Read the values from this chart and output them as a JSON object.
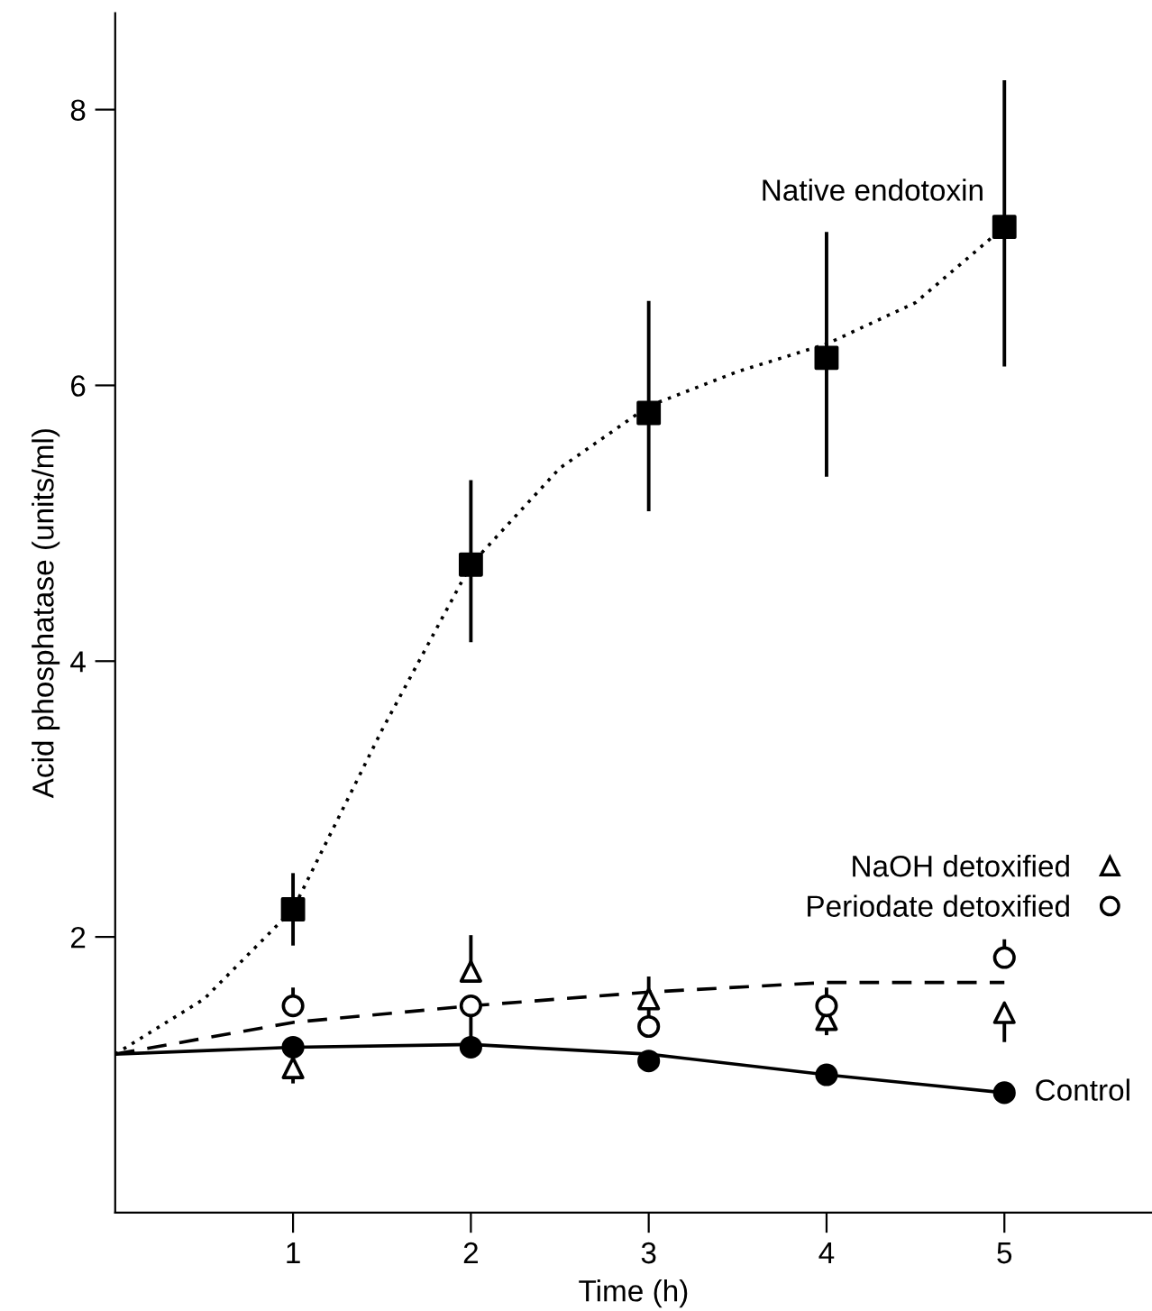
{
  "chart_data": {
    "type": "scatter",
    "xlabel": "Time (h)",
    "ylabel": "Acid phosphatase (units/ml)",
    "xlim": [
      0,
      5.83
    ],
    "ylim": [
      0,
      8.7
    ],
    "xticks": [
      1,
      2,
      3,
      4,
      5
    ],
    "yticks": [
      2,
      4,
      6,
      8
    ],
    "grid": false,
    "legend": "right",
    "series": [
      {
        "type": "line",
        "x": [
          0,
          0.5,
          1,
          1.5,
          2,
          2.5,
          3,
          3.5,
          4,
          4.5,
          5
        ],
        "values": [
          1.15,
          1.55,
          2.2,
          3.5,
          4.7,
          5.4,
          5.85,
          6.1,
          6.3,
          6.6,
          7.15
        ],
        "color": "#000000",
        "line_style": "dotted",
        "marker": "none"
      },
      {
        "type": "line",
        "x": [
          0,
          1,
          2,
          3,
          4,
          5
        ],
        "values": [
          1.15,
          1.2,
          1.22,
          1.15,
          1.0,
          0.87
        ],
        "color": "#000000",
        "line_style": "solid",
        "marker": "none"
      },
      {
        "type": "line",
        "x": [
          0,
          1,
          2,
          3,
          4,
          5
        ],
        "values": [
          1.15,
          1.38,
          1.5,
          1.6,
          1.67,
          1.67
        ],
        "color": "#000000",
        "line_style": "dashed",
        "marker": "none"
      },
      {
        "name": "Native endotoxin",
        "x": [
          1,
          2,
          3,
          4,
          5
        ],
        "values": [
          2.2,
          4.7,
          5.8,
          6.2,
          7.15
        ],
        "color": "#000000",
        "marker": "square",
        "errors": [
          [
            1.95,
            2.45
          ],
          [
            4.15,
            5.3
          ],
          [
            5.1,
            6.6
          ],
          [
            5.35,
            7.1
          ],
          [
            6.15,
            8.2
          ]
        ]
      },
      {
        "name": "NaOH detoxified",
        "x": [
          1,
          2,
          3,
          4,
          5
        ],
        "values": [
          1.05,
          1.75,
          1.55,
          1.4,
          1.45
        ],
        "color": "#ffffff",
        "marker": "triangle",
        "errors": [
          [
            0.95,
            1.05
          ],
          [
            1.75,
            2.0
          ],
          [
            1.55,
            1.7
          ],
          [
            1.3,
            1.4
          ],
          [
            1.25,
            1.45
          ]
        ]
      },
      {
        "name": "Periodate detoxified",
        "x": [
          1,
          2,
          3,
          4,
          5
        ],
        "values": [
          1.5,
          1.5,
          1.35,
          1.5,
          1.85
        ],
        "color": "#ffffff",
        "marker": "circle",
        "errors": [
          [
            1.5,
            1.62
          ],
          [
            1.25,
            1.5
          ],
          [
            1.35,
            1.5
          ],
          [
            1.5,
            1.62
          ],
          [
            1.85,
            1.97
          ]
        ]
      },
      {
        "name": "Control",
        "x": [
          1,
          2,
          3,
          4,
          5
        ],
        "values": [
          1.2,
          1.2,
          1.1,
          1.0,
          0.87
        ],
        "color": "#000000",
        "marker": "circle"
      }
    ]
  }
}
